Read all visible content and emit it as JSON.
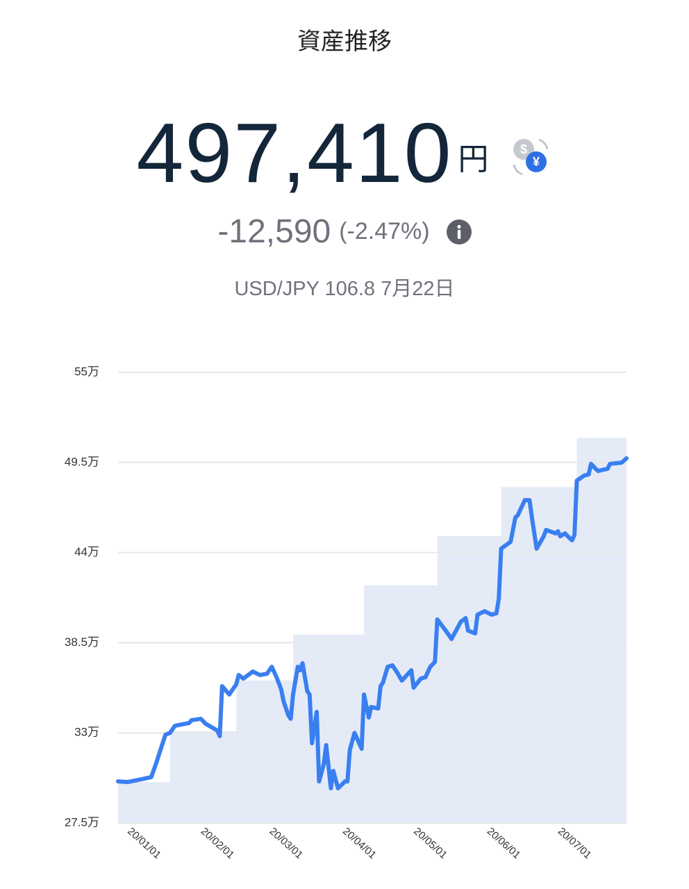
{
  "header": {
    "title": "資産推移",
    "total": "497,410",
    "currency": "円",
    "currency_icon": {
      "from": "$",
      "to": "¥"
    },
    "change": "-12,590",
    "change_pct": "(-2.47%)",
    "fx_rate": "USD/JPY 106.8 7月22日"
  },
  "chart_data": {
    "type": "line",
    "color": "#3a7ff0",
    "x": [
      -2,
      2,
      8,
      12,
      14,
      18,
      20,
      22,
      28,
      29,
      33,
      35,
      40,
      41,
      42,
      45,
      48,
      49,
      51,
      55,
      58,
      61,
      63,
      65,
      67,
      68,
      70,
      71,
      72,
      74,
      75,
      76,
      78,
      79,
      80,
      82,
      83,
      85,
      86,
      88,
      89,
      91,
      94,
      95,
      96,
      98,
      101,
      102,
      104,
      105,
      108,
      109,
      110,
      112,
      114,
      116,
      118,
      122,
      123,
      126,
      128,
      130,
      132,
      133,
      137,
      139,
      143,
      145,
      146,
      149,
      150,
      153,
      156,
      158,
      159,
      160,
      164,
      166,
      167,
      170,
      172,
      173,
      175,
      178,
      179,
      183,
      184,
      185,
      187,
      189,
      190,
      191,
      192,
      195,
      197,
      198,
      200,
      201,
      205,
      206,
      211,
      213
    ],
    "values": [
      30.04,
      30.0,
      30.17,
      30.3,
      31.1,
      32.88,
      33.0,
      33.43,
      33.6,
      33.77,
      33.86,
      33.56,
      33.14,
      32.8,
      35.85,
      35.34,
      35.97,
      36.53,
      36.31,
      36.74,
      36.53,
      36.61,
      37.03,
      36.4,
      35.64,
      34.92,
      34.07,
      33.86,
      35.34,
      37.03,
      36.82,
      37.25,
      35.55,
      35.34,
      32.37,
      34.28,
      30.04,
      31.1,
      32.25,
      29.62,
      30.68,
      29.62,
      30.04,
      30.04,
      31.95,
      33.0,
      32.03,
      35.34,
      33.94,
      34.58,
      34.49,
      35.85,
      36.06,
      37.03,
      37.12,
      36.69,
      36.19,
      36.82,
      35.76,
      36.31,
      36.4,
      37.03,
      37.33,
      39.92,
      39.15,
      38.73,
      39.79,
      40.0,
      39.24,
      39.07,
      40.21,
      40.42,
      40.21,
      40.3,
      41.19,
      44.24,
      44.66,
      46.14,
      46.27,
      47.2,
      47.2,
      46.14,
      44.24,
      45.0,
      45.38,
      45.17,
      45.3,
      45.0,
      45.17,
      44.87,
      44.75,
      45.08,
      48.39,
      48.69,
      48.77,
      49.41,
      49.11,
      48.98,
      49.11,
      49.41,
      49.49,
      49.75
    ],
    "area": {
      "color": "#e4ebf7",
      "x": [
        -2,
        20,
        48,
        72,
        102,
        133,
        160,
        192
      ],
      "values": [
        30.0,
        33.1,
        36.2,
        39.0,
        42.0,
        45.0,
        48.0,
        51.0
      ]
    },
    "xlim": [
      -2,
      213
    ],
    "xticks": [
      {
        "value": 0,
        "label": "20/01/01"
      },
      {
        "value": 31,
        "label": "20/02/01"
      },
      {
        "value": 60,
        "label": "20/03/01"
      },
      {
        "value": 91,
        "label": "20/04/01"
      },
      {
        "value": 121,
        "label": "20/05/01"
      },
      {
        "value": 152,
        "label": "20/06/01"
      },
      {
        "value": 182,
        "label": "20/07/01"
      }
    ],
    "ylim": [
      27.5,
      55
    ],
    "yticks": [
      {
        "value": 27.5,
        "label": "27.5万"
      },
      {
        "value": 33,
        "label": "33万"
      },
      {
        "value": 38.5,
        "label": "38.5万"
      },
      {
        "value": 44,
        "label": "44万"
      },
      {
        "value": 49.5,
        "label": "49.5万"
      },
      {
        "value": 55,
        "label": "55万"
      }
    ],
    "grid": true
  }
}
